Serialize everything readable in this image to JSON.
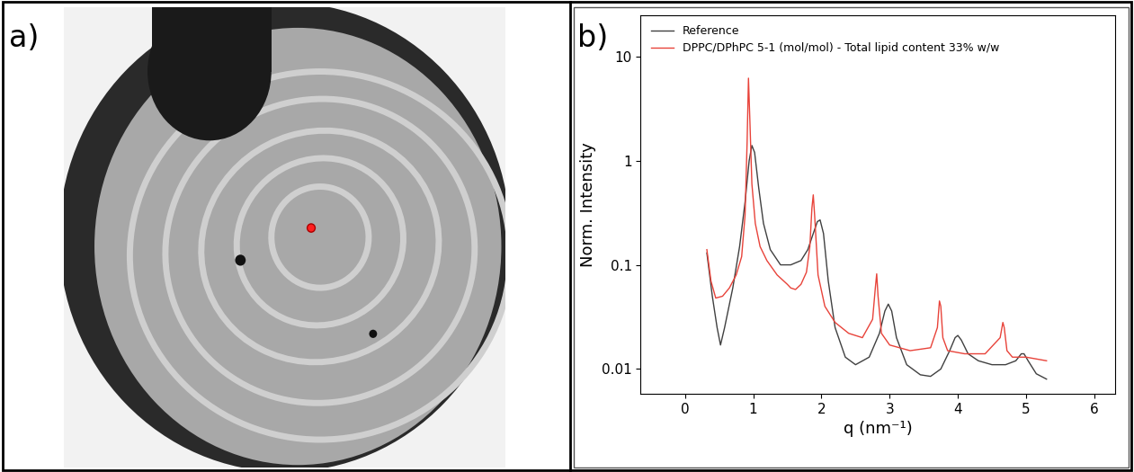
{
  "panel_labels": [
    "a)",
    "b)"
  ],
  "chart_data": {
    "type": "line",
    "x_label": "q (nm⁻¹)",
    "y_label": "Norm. Intensity",
    "log": "y",
    "legend": "upper left",
    "xlim": [
      -0.65,
      6.3
    ],
    "xticks": [
      0,
      1,
      2,
      3,
      4,
      5,
      6
    ],
    "ylim": [
      0.0058,
      25
    ],
    "yticks": [
      0.01,
      0.1,
      1,
      10
    ],
    "series": [
      {
        "name": "Reference",
        "color": "#404040",
        "x": [
          0.32,
          0.4,
          0.47,
          0.52,
          0.58,
          0.7,
          0.8,
          0.88,
          0.94,
          0.98,
          1.02,
          1.08,
          1.15,
          1.25,
          1.4,
          1.55,
          1.7,
          1.8,
          1.88,
          1.94,
          1.98,
          2.03,
          2.1,
          2.2,
          2.35,
          2.5,
          2.7,
          2.85,
          2.93,
          2.98,
          3.03,
          3.1,
          3.25,
          3.45,
          3.6,
          3.75,
          3.88,
          3.96,
          4.0,
          4.05,
          4.15,
          4.3,
          4.5,
          4.7,
          4.85,
          4.93,
          4.97,
          5.03,
          5.15,
          5.3
        ],
        "values": [
          0.13,
          0.05,
          0.025,
          0.017,
          0.025,
          0.06,
          0.15,
          0.4,
          1.0,
          1.4,
          1.2,
          0.55,
          0.25,
          0.14,
          0.1,
          0.1,
          0.11,
          0.14,
          0.2,
          0.26,
          0.27,
          0.2,
          0.07,
          0.025,
          0.013,
          0.011,
          0.013,
          0.022,
          0.036,
          0.042,
          0.036,
          0.02,
          0.011,
          0.0088,
          0.0085,
          0.01,
          0.015,
          0.02,
          0.021,
          0.019,
          0.014,
          0.012,
          0.011,
          0.011,
          0.012,
          0.014,
          0.014,
          0.012,
          0.009,
          0.008
        ]
      },
      {
        "name": "DPPC/DPhPC 5-1 (mol/mol) - Total lipid content 33% w/w",
        "color": "#e8433a",
        "x": [
          0.32,
          0.38,
          0.45,
          0.55,
          0.65,
          0.75,
          0.83,
          0.88,
          0.91,
          0.93,
          0.95,
          0.98,
          1.03,
          1.1,
          1.2,
          1.35,
          1.5,
          1.55,
          1.62,
          1.7,
          1.78,
          1.83,
          1.86,
          1.88,
          1.9,
          1.95,
          2.05,
          2.2,
          2.4,
          2.6,
          2.75,
          2.79,
          2.81,
          2.83,
          2.88,
          3.0,
          3.3,
          3.6,
          3.7,
          3.73,
          3.75,
          3.78,
          3.85,
          4.1,
          4.4,
          4.62,
          4.66,
          4.68,
          4.72,
          4.8,
          5.0,
          5.3
        ],
        "values": [
          0.14,
          0.07,
          0.048,
          0.05,
          0.06,
          0.08,
          0.12,
          0.3,
          1.5,
          6.2,
          2.5,
          0.6,
          0.25,
          0.15,
          0.11,
          0.08,
          0.065,
          0.06,
          0.058,
          0.065,
          0.085,
          0.15,
          0.35,
          0.47,
          0.3,
          0.08,
          0.04,
          0.028,
          0.022,
          0.02,
          0.03,
          0.06,
          0.082,
          0.05,
          0.022,
          0.017,
          0.015,
          0.016,
          0.025,
          0.045,
          0.04,
          0.02,
          0.015,
          0.014,
          0.014,
          0.02,
          0.028,
          0.025,
          0.015,
          0.013,
          0.013,
          0.012
        ]
      }
    ]
  }
}
